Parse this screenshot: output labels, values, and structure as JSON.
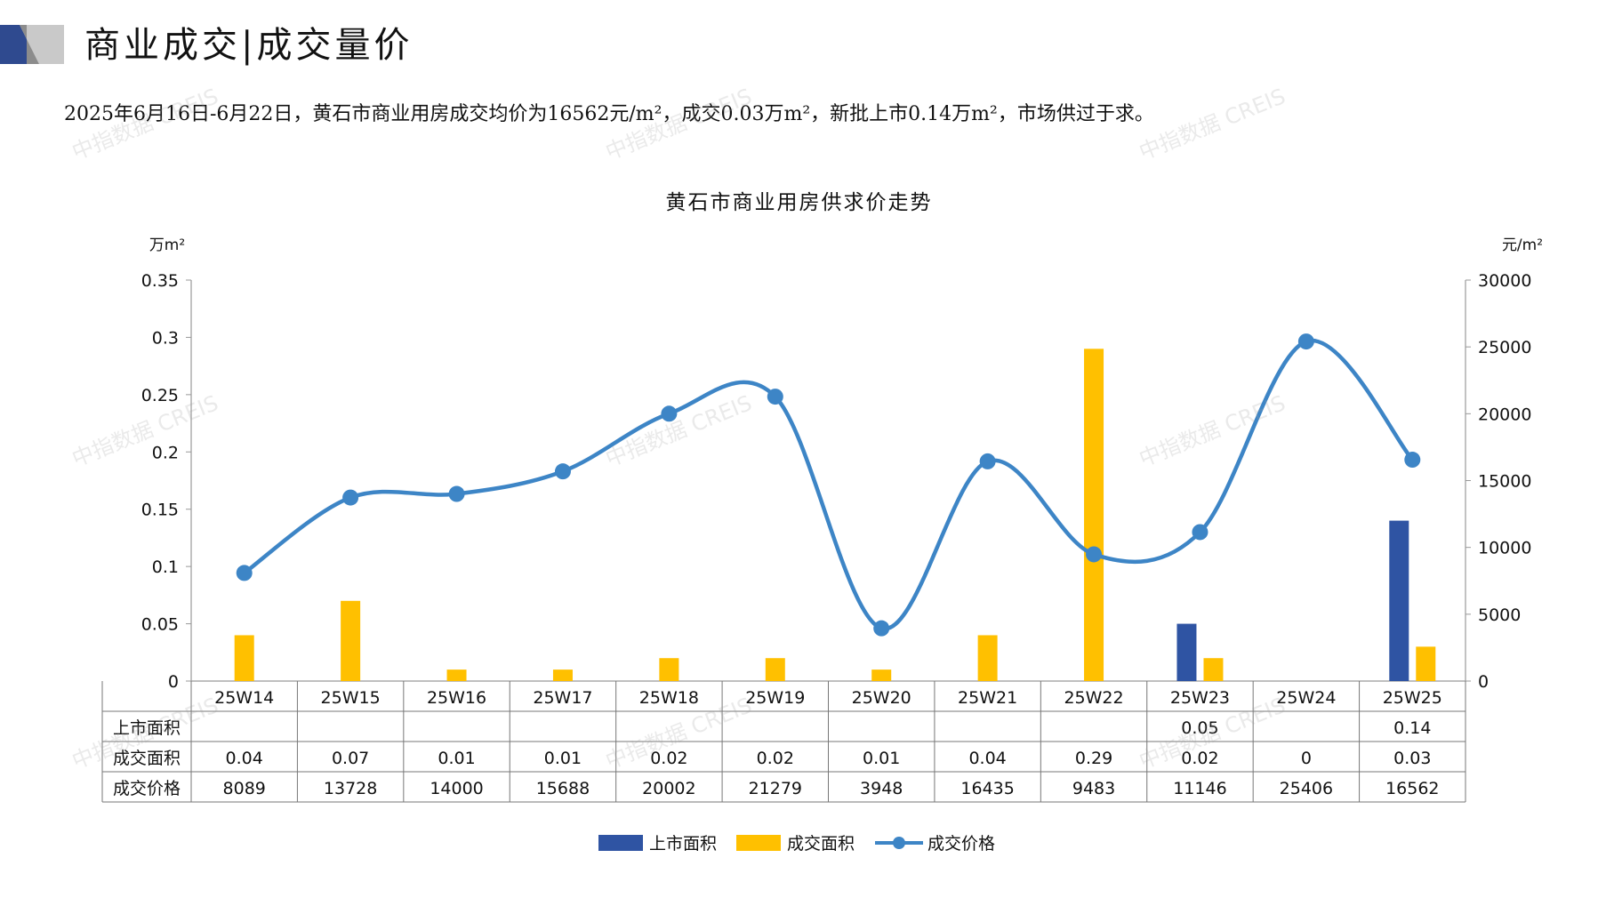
{
  "header": {
    "title": "商业成交|成交量价",
    "summary": "2025年6月16日-6月22日，黄石市商业用房成交均价为16562元/m²，成交0.03万m²，新批上市0.14万m²，市场供过于求。"
  },
  "colors": {
    "supply": "#2f54a3",
    "deal_area": "#ffc000",
    "price": "#3d85c6",
    "header_dark": "#2f4a8f",
    "header_gray": "#c9c9c9"
  },
  "watermark": "中指数据 CREIS",
  "chart_data": {
    "type": "bar",
    "title": "黄石市商业用房供求价走势",
    "categories": [
      "25W14",
      "25W15",
      "25W16",
      "25W17",
      "25W18",
      "25W19",
      "25W20",
      "25W21",
      "25W22",
      "25W23",
      "25W24",
      "25W25"
    ],
    "y_left": {
      "unit": "万m²",
      "ylim": [
        0,
        0.35
      ],
      "ticks": [
        "0",
        "0.05",
        "0.1",
        "0.15",
        "0.2",
        "0.25",
        "0.3",
        "0.35"
      ]
    },
    "y_right": {
      "unit": "元/m²",
      "ylim": [
        0,
        30000
      ],
      "ticks": [
        "0",
        "5000",
        "10000",
        "15000",
        "20000",
        "25000",
        "30000"
      ]
    },
    "series": [
      {
        "name": "上市面积",
        "type": "bar",
        "axis": "left",
        "values": [
          null,
          null,
          null,
          null,
          null,
          null,
          null,
          null,
          null,
          0.05,
          null,
          0.14
        ],
        "labels": [
          "",
          "",
          "",
          "",
          "",
          "",
          "",
          "",
          "",
          "0.05",
          "",
          "0.14"
        ]
      },
      {
        "name": "成交面积",
        "type": "bar",
        "axis": "left",
        "values": [
          0.04,
          0.07,
          0.01,
          0.01,
          0.02,
          0.02,
          0.01,
          0.04,
          0.29,
          0.02,
          0,
          0.03
        ],
        "labels": [
          "0.04",
          "0.07",
          "0.01",
          "0.01",
          "0.02",
          "0.02",
          "0.01",
          "0.04",
          "0.29",
          "0.02",
          "0",
          "0.03"
        ]
      },
      {
        "name": "成交价格",
        "type": "line",
        "axis": "right",
        "values": [
          8089,
          13728,
          14000,
          15688,
          20002,
          21279,
          3948,
          16435,
          9483,
          11146,
          25406,
          16562
        ],
        "labels": [
          "8089",
          "13728",
          "14000",
          "15688",
          "20002",
          "21279",
          "3948",
          "16435",
          "9483",
          "11146",
          "25406",
          "16562"
        ]
      }
    ],
    "legend_position": "bottom",
    "grid": false
  }
}
